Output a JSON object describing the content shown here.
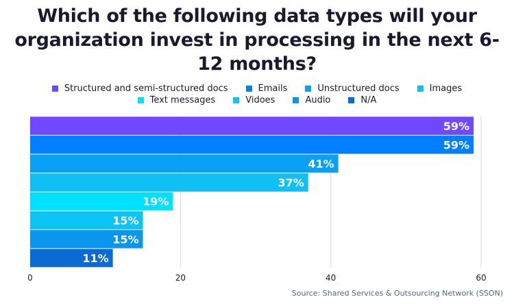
{
  "chart_data": {
    "type": "bar",
    "orientation": "horizontal",
    "title": "Which of the following data types will your organization invest in processing in the next 6-12 months?",
    "categories": [
      "Structured and semi-structured docs",
      "Emails",
      "Unstructured docs",
      "Images",
      "Text messages",
      "Vidoes",
      "Audio",
      "N/A"
    ],
    "values": [
      59,
      59,
      41,
      37,
      19,
      15,
      15,
      11
    ],
    "value_labels": [
      "59%",
      "59%",
      "41%",
      "37%",
      "19%",
      "15%",
      "15%",
      "11%"
    ],
    "colors": [
      "#7048ff",
      "#0080ff",
      "#0aa0f5",
      "#10c0f5",
      "#00e0ff",
      "#0cc4f8",
      "#0a96ee",
      "#0a6cd2"
    ],
    "xlim": [
      0,
      60
    ],
    "xticks": [
      0,
      20,
      40,
      60
    ],
    "xtick_labels": [
      "0",
      "20",
      "40",
      "60"
    ],
    "xlabel": "",
    "ylabel": "",
    "grid": "vertical",
    "legend": "top-center"
  },
  "source": "Source: Shared Services & Outsourcing Network (SSON)"
}
